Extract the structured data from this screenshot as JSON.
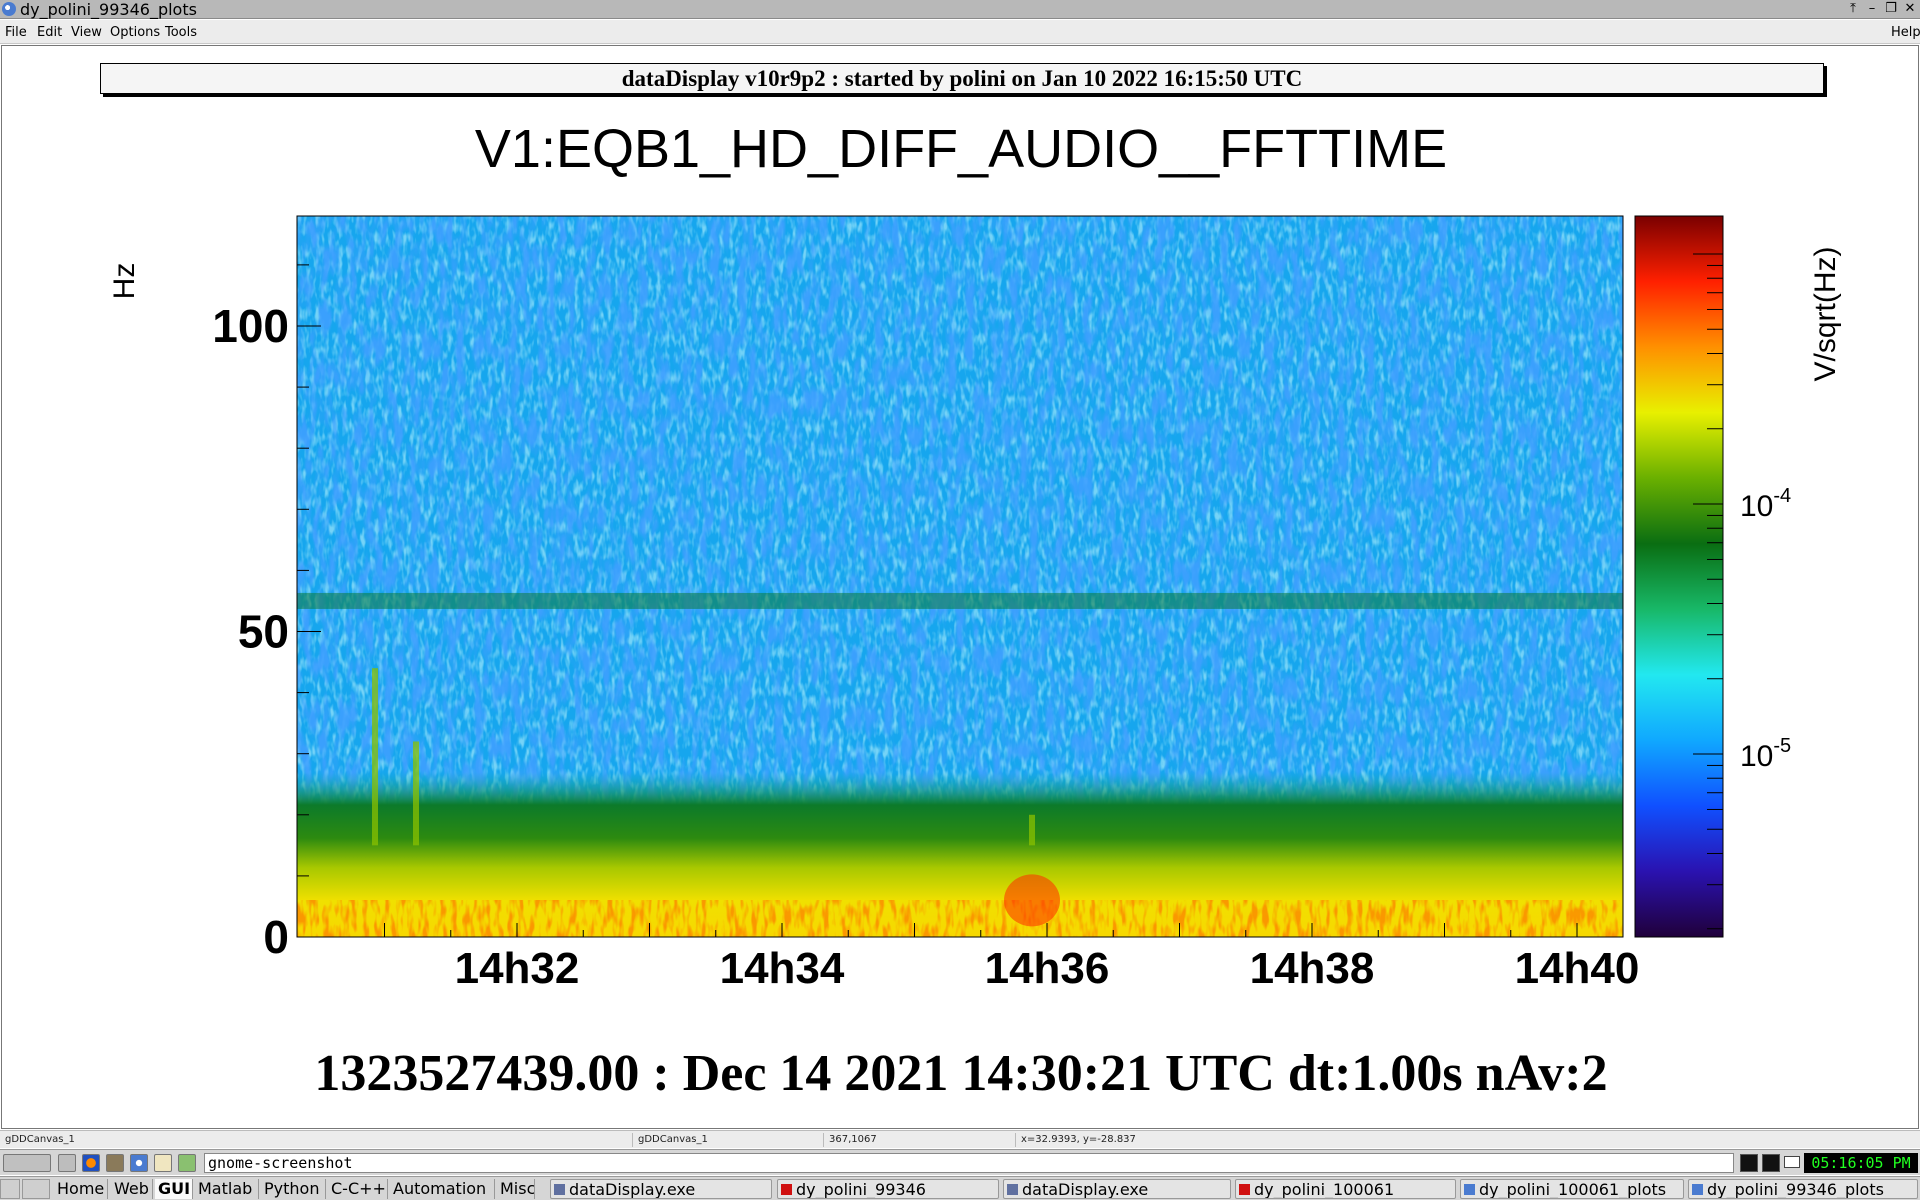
{
  "window": {
    "title": "dy_polini_99346_plots"
  },
  "menubar": {
    "file": "File",
    "edit": "Edit",
    "view": "View",
    "options": "Options",
    "tools": "Tools",
    "help": "Help"
  },
  "canvas": {
    "header": "dataDisplay v10r9p2 : started by polini on Jan 10 2022 16:15:50 UTC",
    "footer": "1323527439.00 : Dec 14 2021 14:30:21 UTC dt:1.00s nAv:2"
  },
  "chart_data": {
    "type": "heatmap",
    "title": "V1:EQB1_HD_DIFF_AUDIO__FFTTIME",
    "ylabel": "Hz",
    "zlabel": "V/sqrt(Hz)",
    "z_scale": "log",
    "x_tick_labels": [
      "14h32",
      "14h34",
      "14h36",
      "14h38",
      "14h40"
    ],
    "y_ticks": [
      0,
      50,
      100
    ],
    "ylim": [
      0,
      118
    ],
    "z_ticks": [
      {
        "label": "10",
        "exp": "-4",
        "value": 0.0001
      },
      {
        "label": "10",
        "exp": "-5",
        "value": 1e-05
      }
    ],
    "features": [
      {
        "description_of_band": "mains line",
        "frequency_hz": 55
      },
      {
        "description_of_band": "low-frequency excess",
        "frequency_range_hz": [
          0,
          15
        ]
      }
    ],
    "colormap": [
      "#20003a",
      "#2a12b0",
      "#1050ff",
      "#10a8ff",
      "#22e8f0",
      "#18b868",
      "#0a6e12",
      "#6ab000",
      "#e8f000",
      "#ff9000",
      "#ff2000",
      "#7a0000"
    ]
  },
  "statusbar": {
    "canvas_name": "gDDCanvas_1",
    "object": "gDDCanvas_1",
    "pixel": "367,1067",
    "coords": "x=32.9393, y=-28.837"
  },
  "taskbar": {
    "command": "gnome-screenshot",
    "clock": "05:16:05 PM",
    "tabs": [
      "Home",
      "Web",
      "GUI",
      "Matlab",
      "Python",
      "C-C++",
      "Automation",
      "Misc"
    ],
    "tasks": [
      "dataDisplay.exe",
      "dy_polini_99346",
      "dataDisplay.exe",
      "dy_polini_100061",
      "dy_polini_100061_plots",
      "dy_polini_99346_plots"
    ]
  }
}
